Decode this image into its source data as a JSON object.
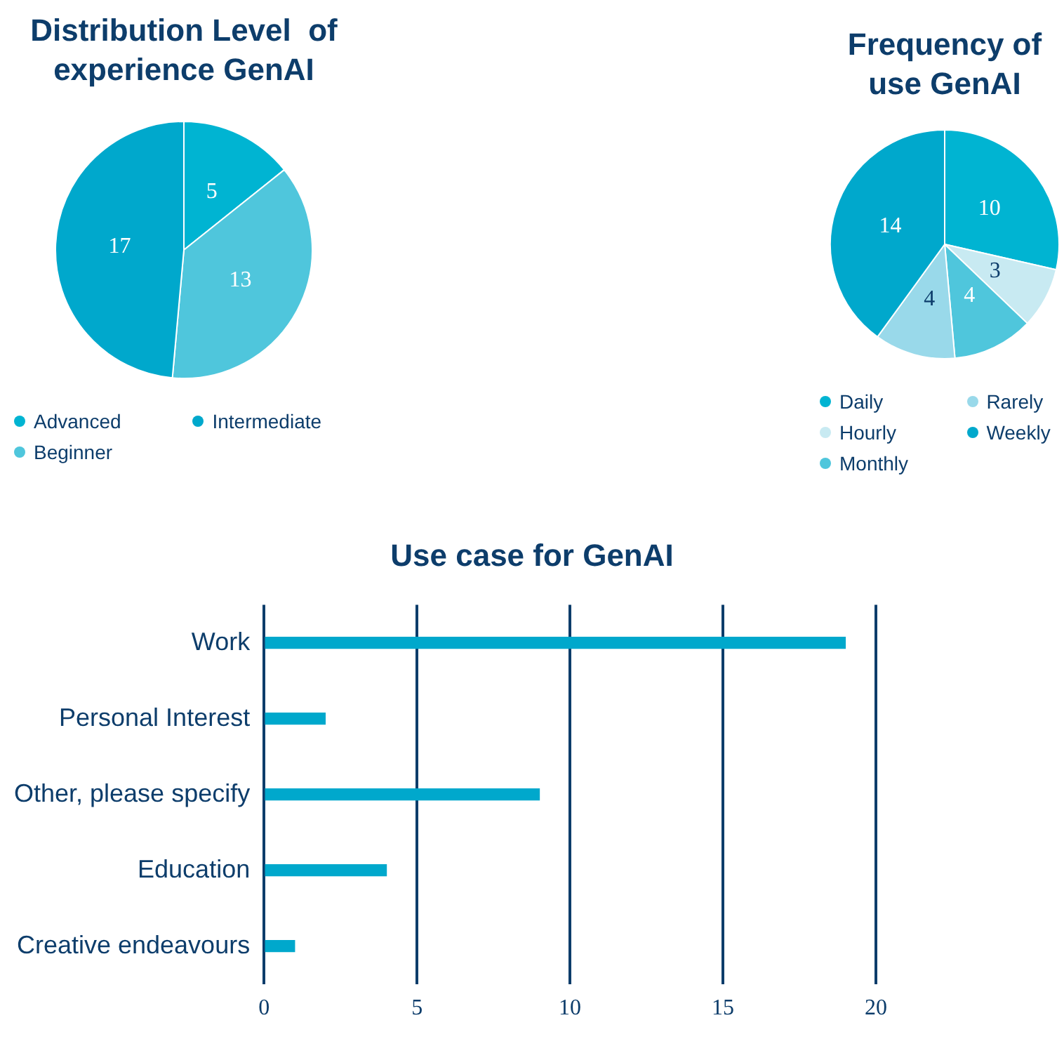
{
  "chart_data": [
    {
      "type": "pie",
      "title": "Distribution Level  of experience GenAI",
      "categories": [
        "Advanced",
        "Beginner",
        "Intermediate"
      ],
      "values": [
        5,
        13,
        17
      ],
      "colors": [
        "#00b4d2",
        "#4fc6dc",
        "#00a8cc"
      ],
      "data_labels": true,
      "legend": "bottom"
    },
    {
      "type": "pie",
      "title": "Frequency of use GenAI",
      "categories": [
        "Daily",
        "Hourly",
        "Monthly",
        "Rarely",
        "Weekly"
      ],
      "values": [
        10,
        3,
        4,
        4,
        14
      ],
      "colors": [
        "#00b4d2",
        "#c8eaf2",
        "#4fc6dc",
        "#99d9ea",
        "#00a8cc"
      ],
      "data_labels": true,
      "legend": "bottom"
    },
    {
      "type": "bar",
      "orientation": "horizontal",
      "title": "Use case for GenAI",
      "categories": [
        "Work",
        "Personal Interest",
        "Other, please specify",
        "Education",
        "Creative endeavours"
      ],
      "values": [
        19,
        2,
        9,
        4,
        1
      ],
      "color": "#00a8cc",
      "xlim": [
        0,
        20
      ],
      "xticks": [
        0,
        5,
        10,
        15,
        20
      ],
      "grid": "x"
    }
  ]
}
